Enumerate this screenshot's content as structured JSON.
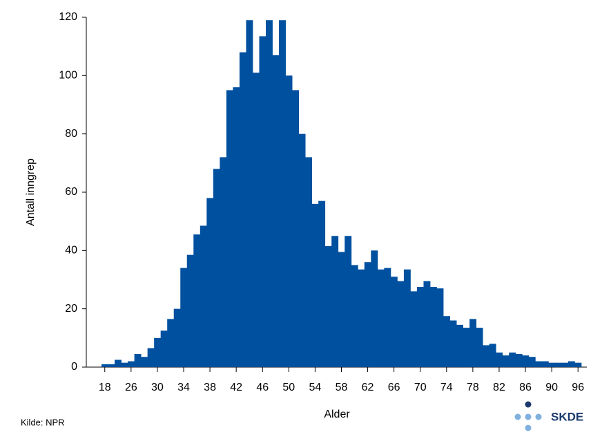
{
  "chart_data": {
    "type": "bar",
    "x_label": "Alder",
    "y_label": "Antall inngrep",
    "source": "Kilde: NPR",
    "logo_text": "SKDE",
    "color": "#0050a0",
    "categories": [
      "18",
      null,
      null,
      null,
      "26",
      null,
      null,
      null,
      "30",
      null,
      null,
      null,
      "34",
      null,
      null,
      null,
      "38",
      null,
      null,
      null,
      "42",
      null,
      null,
      null,
      "46",
      null,
      null,
      null,
      "50",
      null,
      null,
      null,
      "54",
      null,
      null,
      null,
      "58",
      null,
      null,
      null,
      "62",
      null,
      null,
      null,
      "66",
      null,
      null,
      null,
      "70",
      null,
      null,
      null,
      "74",
      null,
      null,
      null,
      "78",
      null,
      null,
      null,
      "82",
      null,
      null,
      null,
      "86",
      null,
      null,
      null,
      "90",
      null,
      null,
      null,
      "96"
    ],
    "values": [
      1,
      1,
      2.5,
      1.5,
      2,
      4.5,
      3.5,
      6.5,
      10,
      12.5,
      16.5,
      20,
      34,
      38.5,
      45.5,
      48.5,
      58,
      68,
      72,
      95,
      96,
      108,
      119,
      101,
      113.5,
      119,
      107,
      119,
      100,
      95,
      80,
      72,
      56,
      57,
      41.5,
      45,
      39.5,
      45,
      35,
      33.5,
      36,
      40,
      33.5,
      34,
      31,
      29.5,
      33.5,
      26,
      27.5,
      29.5,
      27.5,
      27,
      17.5,
      16,
      14.5,
      13.5,
      16.5,
      13.5,
      7.5,
      8,
      5,
      4,
      5,
      4.5,
      4,
      3.5,
      2,
      2,
      1.5,
      1.5,
      1.5,
      2,
      1.5
    ],
    "ylim": [
      0,
      120
    ],
    "yticks": [
      0,
      20,
      40,
      60,
      80,
      100,
      120
    ]
  }
}
